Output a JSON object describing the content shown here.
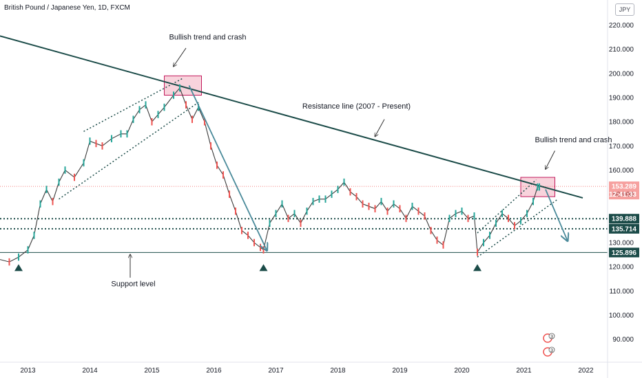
{
  "header": {
    "symbol_title": "British Pound / Japanese Yen, 1D, FXCM",
    "currency_button": "JPY"
  },
  "colors": {
    "up": "#26a69a",
    "down": "#ef5350",
    "trendline": "#1b4b48",
    "price_line": "#ef5350",
    "level_tag": "#1b4b48",
    "box_fill": "#f3b6c4",
    "box_stroke": "#c2185b"
  },
  "chart_data": {
    "type": "line",
    "title": "British Pound / Japanese Yen, 1D, FXCM",
    "x_ticks": [
      "2013",
      "2014",
      "2015",
      "2016",
      "2017",
      "2018",
      "2019",
      "2020",
      "2021",
      "2022"
    ],
    "y_ticks": [
      "90.000",
      "100.000",
      "110.000",
      "120.000",
      "130.000",
      "140.000",
      "150.000",
      "160.000",
      "170.000",
      "180.000",
      "190.000",
      "200.000",
      "210.000",
      "220.000"
    ],
    "xlim": [
      2012.55,
      2022.35
    ],
    "ylim": [
      80.5,
      223
    ],
    "series": [
      {
        "x": [
          2012.55,
          2012.7,
          2012.85,
          2013.0,
          2013.1,
          2013.2,
          2013.3,
          2013.4,
          2013.5,
          2013.6,
          2013.75,
          2013.9,
          2014.0,
          2014.1,
          2014.2,
          2014.35,
          2014.5,
          2014.6,
          2014.7,
          2014.8,
          2014.9,
          2015.0,
          2015.1,
          2015.2,
          2015.35,
          2015.45,
          2015.55,
          2015.65,
          2015.75,
          2015.85,
          2015.95,
          2016.05,
          2016.15,
          2016.25,
          2016.35,
          2016.45,
          2016.55,
          2016.65,
          2016.75,
          2016.8,
          2016.9,
          2017.0,
          2017.1,
          2017.2,
          2017.3,
          2017.4,
          2017.5,
          2017.6,
          2017.7,
          2017.8,
          2017.9,
          2018.0,
          2018.1,
          2018.2,
          2018.3,
          2018.4,
          2018.5,
          2018.6,
          2018.7,
          2018.8,
          2018.9,
          2019.0,
          2019.1,
          2019.2,
          2019.3,
          2019.4,
          2019.5,
          2019.6,
          2019.7,
          2019.8,
          2019.9,
          2020.0,
          2020.1,
          2020.2,
          2020.25,
          2020.35,
          2020.45,
          2020.55,
          2020.65,
          2020.75,
          2020.85,
          2020.95,
          2021.05,
          2021.15,
          2021.22,
          2021.25
        ],
        "y": [
          123,
          122,
          124,
          127,
          133,
          146,
          152,
          147,
          155,
          160,
          157,
          163,
          172,
          171,
          170,
          173,
          175,
          175,
          181,
          185,
          187,
          180,
          183,
          186,
          191,
          194,
          187,
          181,
          186,
          180,
          170,
          162,
          158,
          150,
          143,
          135,
          133,
          130,
          128,
          127,
          138,
          142,
          146,
          140,
          142,
          138,
          143,
          147,
          148,
          148,
          150,
          152,
          155,
          151,
          149,
          146,
          145,
          144,
          147,
          143,
          146,
          144,
          140,
          145,
          143,
          141,
          135,
          131,
          129,
          140,
          142,
          143,
          140,
          141,
          126,
          130,
          133,
          138,
          142,
          140,
          137,
          139,
          142,
          147,
          153,
          153
        ]
      }
    ],
    "price_labels": [
      "153.289",
      "12:41:33"
    ],
    "horizontal_levels": [
      {
        "value": 139.888,
        "label": "139.888"
      },
      {
        "value": 135.714,
        "label": "135.714"
      },
      {
        "value": 125.896,
        "label": "125.896"
      }
    ],
    "current_price": 153.289,
    "resistance_line": [
      [
        2012.55,
        215.5
      ],
      [
        2021.95,
        148.5
      ]
    ],
    "channels": [
      {
        "lower": [
          [
            2013.5,
            148
          ],
          [
            2015.75,
            188
          ]
        ],
        "upper": [
          [
            2013.9,
            176
          ],
          [
            2015.5,
            198
          ]
        ]
      },
      {
        "lower": [
          [
            2020.25,
            124
          ],
          [
            2021.55,
            148
          ]
        ],
        "upper": [
          [
            2020.25,
            134
          ],
          [
            2021.2,
            156
          ]
        ]
      }
    ],
    "boxes": [
      {
        "x": [
          2015.2,
          2015.8
        ],
        "y": [
          191,
          199
        ]
      },
      {
        "x": [
          2020.95,
          2021.5
        ],
        "y": [
          149,
          157
        ]
      }
    ],
    "crash_arrows": [
      {
        "from": [
          2015.6,
          195
        ],
        "to": [
          2016.85,
          127
        ]
      },
      {
        "from": [
          2021.35,
          152
        ],
        "to": [
          2021.7,
          131
        ]
      }
    ],
    "support_markers_x": [
      2012.85,
      2016.8,
      2020.25
    ],
    "annotations": [
      {
        "text": "Bullish trend and crash",
        "x": 2015.9,
        "y": 214
      },
      {
        "text": "Resistance line (2007 - Present)",
        "x": 2018.3,
        "y": 185.5
      },
      {
        "text": "Bullish trend and crash",
        "x": 2021.8,
        "y": 171.5
      },
      {
        "text": "Support level",
        "x": 2014.7,
        "y": 112
      }
    ],
    "pointer_arrows": [
      {
        "from": [
          2015.55,
          210.5
        ],
        "to": [
          2015.35,
          203
        ]
      },
      {
        "from": [
          2018.75,
          181
        ],
        "to": [
          2018.6,
          174
        ]
      },
      {
        "from": [
          2021.5,
          168
        ],
        "to": [
          2021.35,
          160.5
        ]
      },
      {
        "from": [
          2014.65,
          115.5
        ],
        "to": [
          2014.65,
          125
        ]
      }
    ],
    "tradingview_badges": [
      "3",
      "3"
    ],
    "grid": false
  }
}
